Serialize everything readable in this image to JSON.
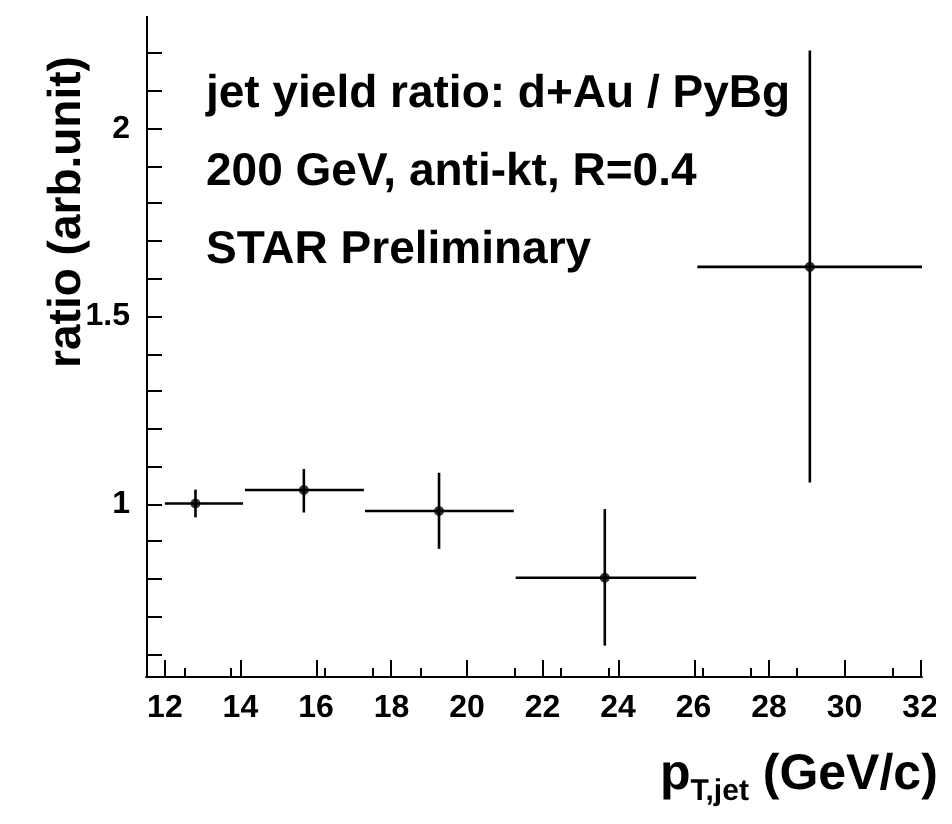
{
  "chart_data": {
    "type": "scatter",
    "xlabel": "p$_{T,jet}$ (GeV/c)",
    "ylabel": "ratio (arb.unit)",
    "annotations": [
      "jet yield ratio: d+Au / PyBg",
      "200 GeV, anti-kt, R=0.4",
      "STAR Preliminary"
    ],
    "x": [
      12.81,
      15.68,
      19.26,
      23.65,
      29.08
    ],
    "values": [
      1.0,
      1.036,
      0.98,
      0.802,
      1.631
    ],
    "errors": [
      [
        0.963,
        1.037
      ],
      [
        0.976,
        1.092
      ],
      [
        0.879,
        1.082
      ],
      [
        0.621,
        0.985
      ],
      [
        1.056,
        2.208
      ]
    ],
    "xerrors": [
      [
        12.0,
        14.07
      ],
      [
        14.12,
        17.27
      ],
      [
        17.3,
        21.24
      ],
      [
        21.29,
        26.07
      ],
      [
        26.1,
        32.05
      ]
    ],
    "color": "#000000",
    "marker": "circle",
    "xlim": [
      11.5,
      32.05
    ],
    "ylim": [
      0.54,
      2.3
    ],
    "xticks": [
      12,
      14,
      16,
      18,
      20,
      22,
      24,
      26,
      28,
      30,
      32
    ],
    "yticks": [
      {
        "value": 0.6,
        "label": null
      },
      {
        "value": 0.7,
        "label": null
      },
      {
        "value": 0.8,
        "label": null
      },
      {
        "value": 0.9,
        "label": null
      },
      1,
      {
        "value": 1.1,
        "label": null
      },
      {
        "value": 1.2,
        "label": null
      },
      {
        "value": 1.3,
        "label": null
      },
      {
        "value": 1.4,
        "label": null
      },
      1.5,
      {
        "value": 1.6,
        "label": null
      },
      {
        "value": 1.7,
        "label": null
      },
      {
        "value": 1.8,
        "label": null
      },
      {
        "value": 1.9,
        "label": null
      },
      2,
      {
        "value": 2.1,
        "label": null
      },
      {
        "value": 2.2,
        "label": null
      }
    ],
    "grid": false
  }
}
